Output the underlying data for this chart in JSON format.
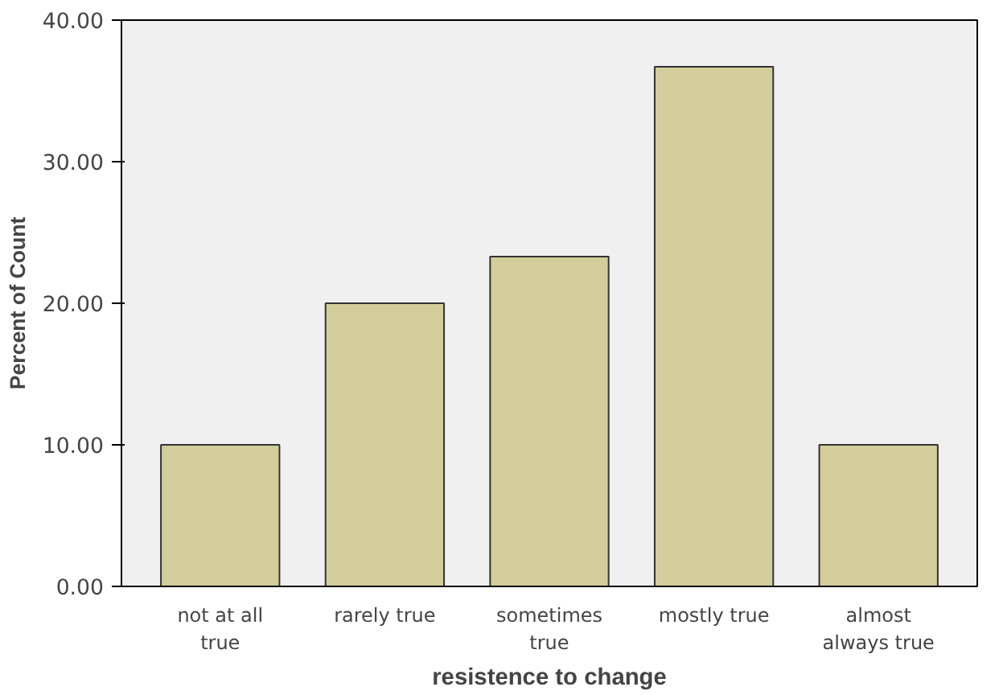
{
  "chart_data": {
    "type": "bar",
    "xlabel": "resistence to change",
    "ylabel": "Percent of Count",
    "categories": [
      "not at all\ntrue",
      "rarely true",
      "sometimes\ntrue",
      "mostly true",
      "almost\nalways true"
    ],
    "values": [
      10,
      20,
      23.3,
      36.7,
      10
    ],
    "color": "#d3cd9b",
    "ylim": [
      0,
      40
    ],
    "yticks": [
      {
        "value": 0,
        "label": "0.00"
      },
      {
        "value": 10,
        "label": "10.00"
      },
      {
        "value": 20,
        "label": "20.00"
      },
      {
        "value": 30,
        "label": "30.00"
      },
      {
        "value": 40,
        "label": "40.00"
      }
    ],
    "grid": false
  }
}
